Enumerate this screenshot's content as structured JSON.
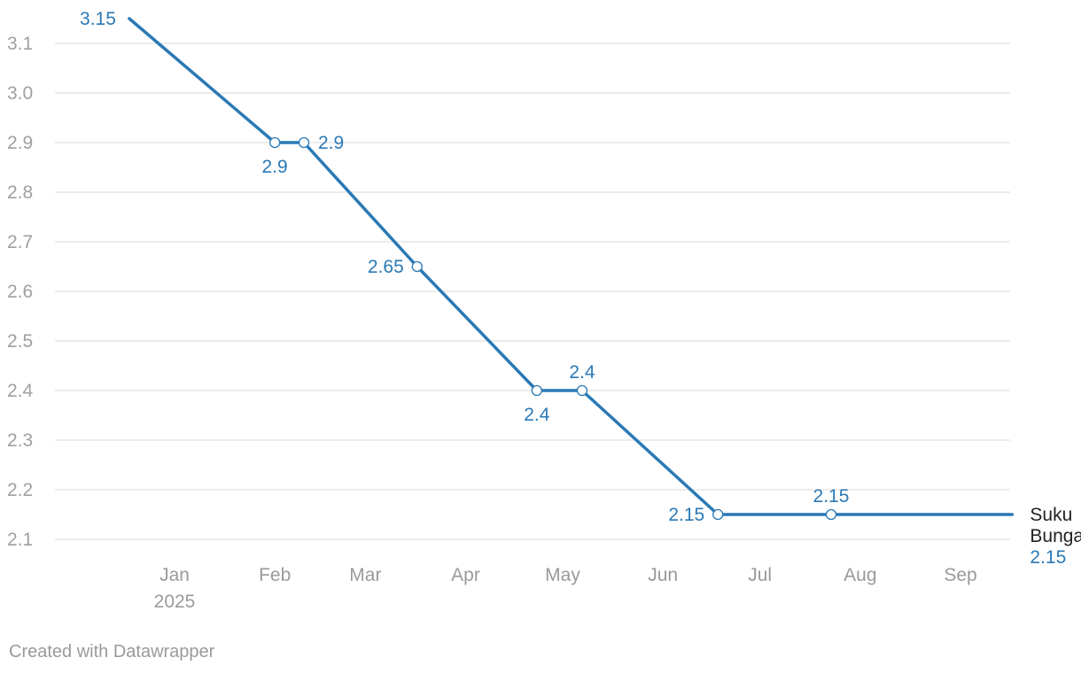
{
  "chart_data": {
    "type": "line",
    "title": "",
    "xlabel": "",
    "ylabel": "",
    "ylim": [
      2.1,
      3.1
    ],
    "y_ticks": [
      "2.1",
      "2.2",
      "2.3",
      "2.4",
      "2.5",
      "2.6",
      "2.7",
      "2.8",
      "2.9",
      "3.0",
      "3.1"
    ],
    "x_ticks": [
      {
        "date": "2025-01-01",
        "label": "Jan",
        "sublabel": "2025"
      },
      {
        "date": "2025-02-01",
        "label": "Feb",
        "sublabel": ""
      },
      {
        "date": "2025-03-01",
        "label": "Mar",
        "sublabel": ""
      },
      {
        "date": "2025-04-01",
        "label": "Apr",
        "sublabel": ""
      },
      {
        "date": "2025-05-01",
        "label": "May",
        "sublabel": ""
      },
      {
        "date": "2025-06-01",
        "label": "Jun",
        "sublabel": ""
      },
      {
        "date": "2025-07-01",
        "label": "Jul",
        "sublabel": ""
      },
      {
        "date": "2025-08-01",
        "label": "Aug",
        "sublabel": ""
      },
      {
        "date": "2025-09-01",
        "label": "Sep",
        "sublabel": ""
      }
    ],
    "grid": true,
    "series": [
      {
        "name": "Suku Bunga",
        "color": "#2a79b5",
        "end_value_label": "2.15",
        "points": [
          {
            "x": "2024-12-18",
            "y": 3.15,
            "label": "3.15",
            "marker": false,
            "label_pos": "left"
          },
          {
            "x": "2025-02-01",
            "y": 2.9,
            "label": "2.9",
            "marker": true,
            "label_pos": "below"
          },
          {
            "x": "2025-02-10",
            "y": 2.9,
            "label": "2.9",
            "marker": true,
            "label_pos": "right"
          },
          {
            "x": "2025-03-17",
            "y": 2.65,
            "label": "2.65",
            "marker": true,
            "label_pos": "left"
          },
          {
            "x": "2025-04-23",
            "y": 2.4,
            "label": "2.4",
            "marker": true,
            "label_pos": "below"
          },
          {
            "x": "2025-05-07",
            "y": 2.4,
            "label": "2.4",
            "marker": true,
            "label_pos": "above"
          },
          {
            "x": "2025-06-18",
            "y": 2.15,
            "label": "2.15",
            "marker": true,
            "label_pos": "left"
          },
          {
            "x": "2025-07-23",
            "y": 2.15,
            "label": "2.15",
            "marker": true,
            "label_pos": "above"
          },
          {
            "x": "2025-09-17",
            "y": 2.15,
            "label": "",
            "marker": false,
            "label_pos": "none"
          }
        ]
      }
    ]
  },
  "footer": {
    "credit": "Created with Datawrapper"
  }
}
